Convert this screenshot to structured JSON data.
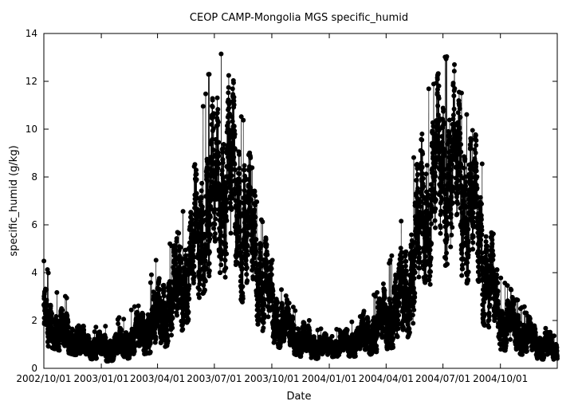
{
  "chart_data": {
    "type": "scatter",
    "title": "CEOP CAMP-Mongolia MGS  specific_humid",
    "xlabel": "Date",
    "ylabel": "specific_humid (g/kg)",
    "x_scale": "date",
    "xlim": [
      "2002-10-01",
      "2004-12-31"
    ],
    "ylim": [
      0,
      14
    ],
    "x_ticks": [
      "2002/10/01",
      "2003/01/01",
      "2003/04/01",
      "2003/07/01",
      "2003/10/01",
      "2004/01/01",
      "2004/04/01",
      "2004/07/01",
      "2004/10/01"
    ],
    "y_ticks": [
      0,
      2,
      4,
      6,
      8,
      10,
      12,
      14
    ],
    "grid": false,
    "legend": "none",
    "marker_color": "#000000",
    "series": [
      {
        "description_points": "Seasonal envelope of hourly specific humidity (date, low, typical, high)",
        "envelope": [
          [
            "2002-10-01",
            1.0,
            2.0,
            4.7
          ],
          [
            "2002-10-20",
            0.8,
            1.6,
            3.3
          ],
          [
            "2002-11-15",
            0.6,
            1.2,
            3.2
          ],
          [
            "2002-12-15",
            0.4,
            0.9,
            1.8
          ],
          [
            "2003-01-10",
            0.3,
            0.8,
            1.9
          ],
          [
            "2003-02-10",
            0.4,
            1.0,
            2.3
          ],
          [
            "2003-03-10",
            0.6,
            1.5,
            2.9
          ],
          [
            "2003-04-01",
            0.7,
            2.0,
            4.8
          ],
          [
            "2003-05-01",
            1.2,
            3.0,
            5.5
          ],
          [
            "2003-06-01",
            2.5,
            5.0,
            8.7
          ],
          [
            "2003-06-20",
            3.5,
            6.5,
            12.3
          ],
          [
            "2003-07-10",
            4.0,
            8.0,
            13.4
          ],
          [
            "2003-08-01",
            3.5,
            7.5,
            12.0
          ],
          [
            "2003-08-20",
            2.5,
            6.0,
            10.0
          ],
          [
            "2003-09-10",
            1.8,
            4.5,
            6.8
          ],
          [
            "2003-10-01",
            1.0,
            2.5,
            4.6
          ],
          [
            "2003-10-20",
            0.8,
            1.8,
            3.2
          ],
          [
            "2003-11-15",
            0.5,
            1.2,
            2.5
          ],
          [
            "2003-12-15",
            0.4,
            0.9,
            1.8
          ],
          [
            "2004-01-10",
            0.5,
            0.9,
            1.6
          ],
          [
            "2004-02-10",
            0.5,
            1.1,
            2.0
          ],
          [
            "2004-03-10",
            0.6,
            1.5,
            3.0
          ],
          [
            "2004-04-01",
            0.8,
            2.0,
            4.0
          ],
          [
            "2004-05-01",
            1.0,
            3.0,
            7.0
          ],
          [
            "2004-06-01",
            3.0,
            6.5,
            11.5
          ],
          [
            "2004-06-20",
            4.0,
            8.0,
            12.1
          ],
          [
            "2004-07-15",
            4.5,
            8.5,
            13.7
          ],
          [
            "2004-08-10",
            3.5,
            7.0,
            10.5
          ],
          [
            "2004-08-25",
            2.5,
            6.0,
            9.6
          ],
          [
            "2004-09-10",
            1.5,
            4.0,
            7.5
          ],
          [
            "2004-10-01",
            0.8,
            2.0,
            3.9
          ],
          [
            "2004-11-01",
            0.6,
            1.5,
            2.8
          ],
          [
            "2004-12-01",
            0.4,
            1.0,
            2.0
          ],
          [
            "2004-12-31",
            0.3,
            0.7,
            1.3
          ]
        ]
      }
    ]
  }
}
